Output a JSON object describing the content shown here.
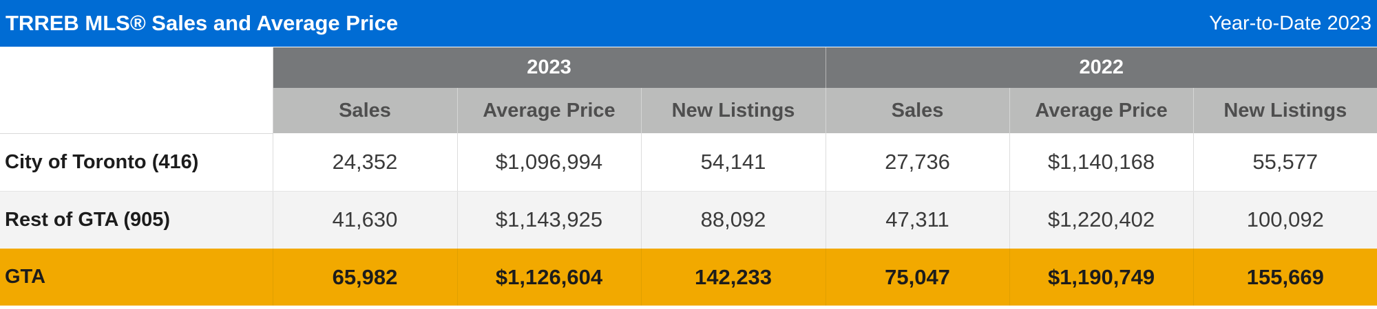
{
  "header": {
    "title": "TRREB MLS® Sales and Average Price",
    "period": "Year-to-Date 2023"
  },
  "table": {
    "years": [
      "2023",
      "2022"
    ],
    "columns": [
      "Sales",
      "Average Price",
      "New Listings",
      "Sales",
      "Average Price",
      "New Listings"
    ],
    "rows": [
      {
        "label": "City of Toronto (416)",
        "values": [
          "24,352",
          "$1,096,994",
          "54,141",
          "27,736",
          "$1,140,168",
          "55,577"
        ]
      },
      {
        "label": "Rest of GTA (905)",
        "values": [
          "41,630",
          "$1,143,925",
          "88,092",
          "47,311",
          "$1,220,402",
          "100,092"
        ]
      },
      {
        "label": "GTA",
        "values": [
          "65,982",
          "$1,126,604",
          "142,233",
          "75,047",
          "$1,190,749",
          "155,669"
        ]
      }
    ]
  },
  "colors": {
    "header_blue": "#006cd4",
    "year_header_gray": "#76787a",
    "column_header_gray": "#bbbcbb",
    "total_row_gold": "#f2a900"
  }
}
